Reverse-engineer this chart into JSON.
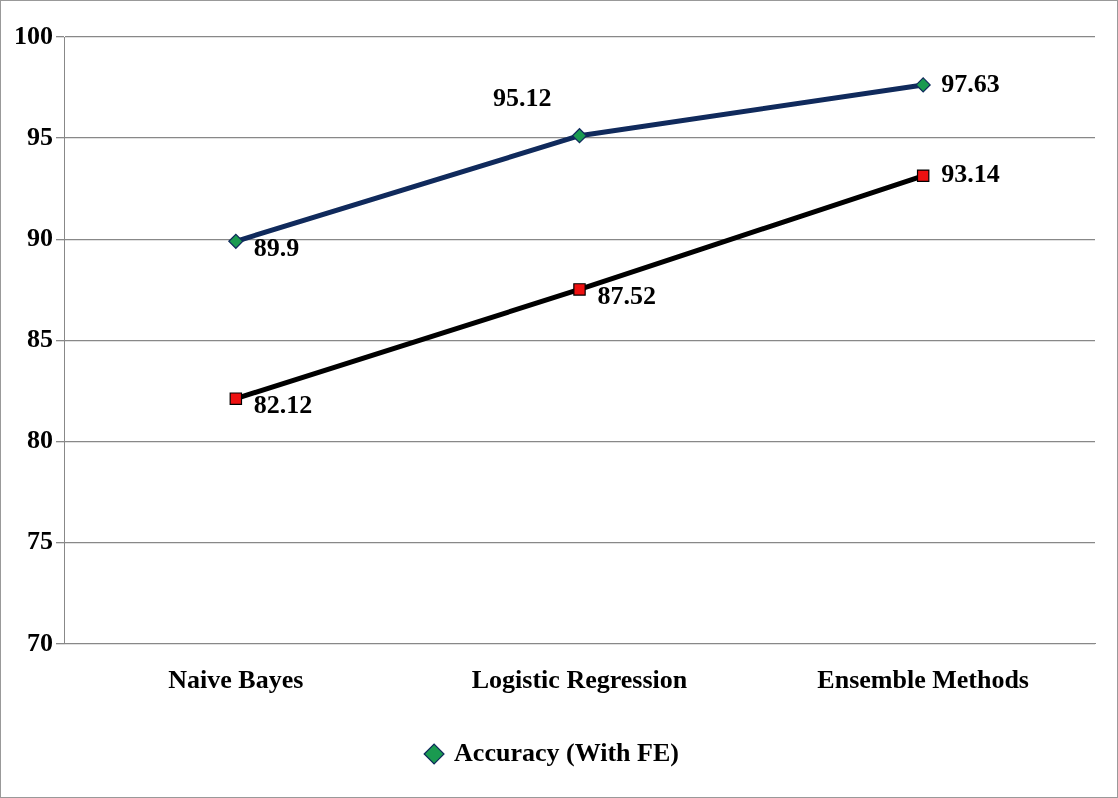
{
  "chart_data": {
    "type": "line",
    "categories": [
      "Naive Bayes",
      "Logistic Regression",
      "Ensemble Methods"
    ],
    "series": [
      {
        "name": "Accuracy (With FE)",
        "color": "#102a5c",
        "values": [
          89.9,
          95.12,
          97.63
        ],
        "marker": "diamond"
      },
      {
        "color": "#000000",
        "values": [
          82.12,
          87.52,
          93.14
        ],
        "marker": "square"
      }
    ],
    "ylim": [
      70,
      100
    ],
    "yticks": [
      70,
      75,
      80,
      85,
      90,
      95,
      100
    ],
    "grid": "y",
    "legend": "bottom",
    "data_labels": true
  }
}
